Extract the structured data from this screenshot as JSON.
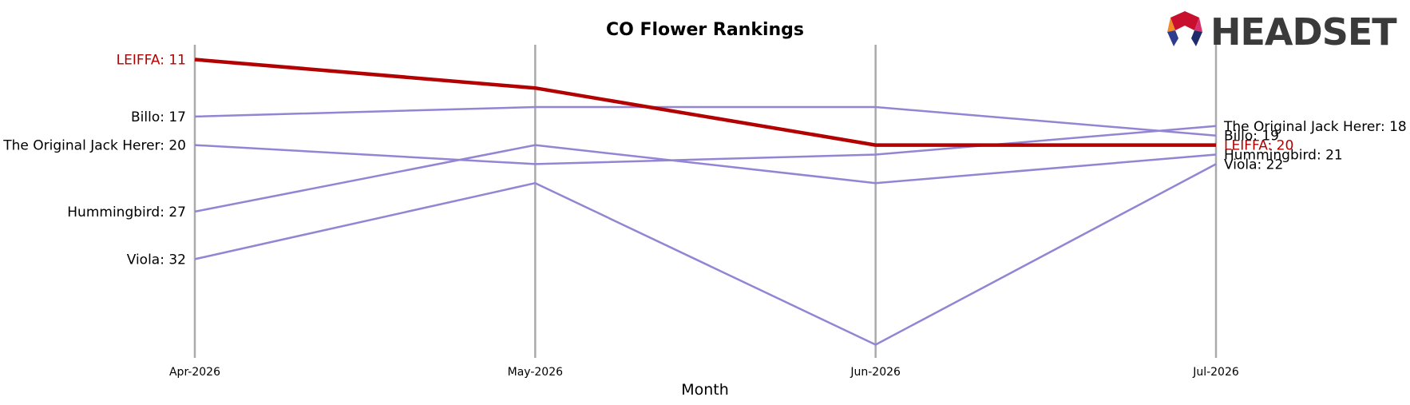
{
  "brand": {
    "name": "HEADSET"
  },
  "colors": {
    "highlight": "#b30000",
    "others": "#9484d4",
    "axis_lines": "#aaaaaa"
  },
  "chart_data": {
    "type": "line",
    "title": "CO Flower Rankings",
    "xlabel": "Month",
    "ylabel": "",
    "x": [
      "Apr-2026",
      "May-2026",
      "Jun-2026",
      "Jul-2026"
    ],
    "y_inverted": true,
    "ylim": [
      43,
      10
    ],
    "grid": false,
    "series": [
      {
        "name": "LEIFFA",
        "values": [
          11,
          14,
          20,
          20
        ],
        "highlight": true,
        "start_label": "LEIFFA: 11",
        "end_label": "LEIFFA: 20"
      },
      {
        "name": "Billo",
        "values": [
          17,
          16,
          16,
          19
        ],
        "highlight": false,
        "start_label": "Billo: 17",
        "end_label": "Billo: 19"
      },
      {
        "name": "The Original Jack Herer",
        "values": [
          20,
          22,
          21,
          18
        ],
        "highlight": false,
        "start_label": "The Original Jack Herer: 20",
        "end_label": "The Original Jack Herer: 18"
      },
      {
        "name": "Hummingbird",
        "values": [
          27,
          20,
          24,
          21
        ],
        "highlight": false,
        "start_label": "Hummingbird: 27",
        "end_label": "Hummingbird: 21"
      },
      {
        "name": "Viola",
        "values": [
          32,
          24,
          41,
          22
        ],
        "highlight": false,
        "start_label": "Viola: 32",
        "end_label": "Viola: 22"
      }
    ]
  }
}
